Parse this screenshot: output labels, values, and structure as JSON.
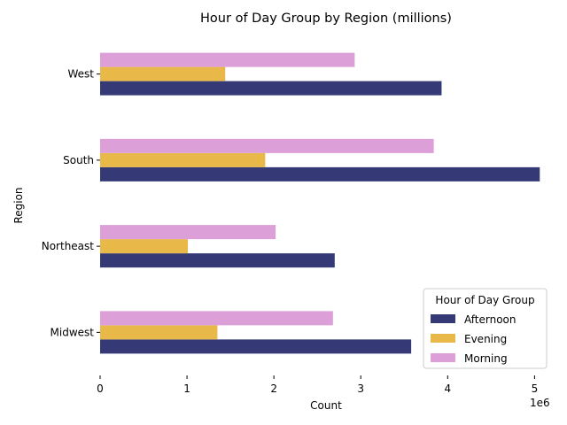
{
  "chart_data": {
    "type": "bar",
    "orientation": "horizontal",
    "title": "Hour of Day Group by Region (millions)",
    "xlabel": "Count",
    "ylabel": "Region",
    "x_offset_label": "1e6",
    "x_scale": 1000000,
    "xlim": [
      0,
      5200000
    ],
    "x_ticks": [
      0,
      1000000,
      2000000,
      3000000,
      4000000,
      5000000
    ],
    "x_tick_labels": [
      "0",
      "1",
      "2",
      "3",
      "4",
      "5"
    ],
    "categories": [
      "West",
      "South",
      "Northeast",
      "Midwest"
    ],
    "legend_title": "Hour of Day Group",
    "legend_position": "bottom-right",
    "grid": false,
    "series": [
      {
        "name": "Afternoon",
        "color": "#353a77",
        "values": [
          3930000,
          5060000,
          2700000,
          3580000
        ]
      },
      {
        "name": "Evening",
        "color": "#e8b849",
        "values": [
          1440000,
          1900000,
          1010000,
          1350000
        ]
      },
      {
        "name": "Morning",
        "color": "#dd9fd8",
        "values": [
          2930000,
          3840000,
          2020000,
          2680000
        ]
      }
    ]
  }
}
